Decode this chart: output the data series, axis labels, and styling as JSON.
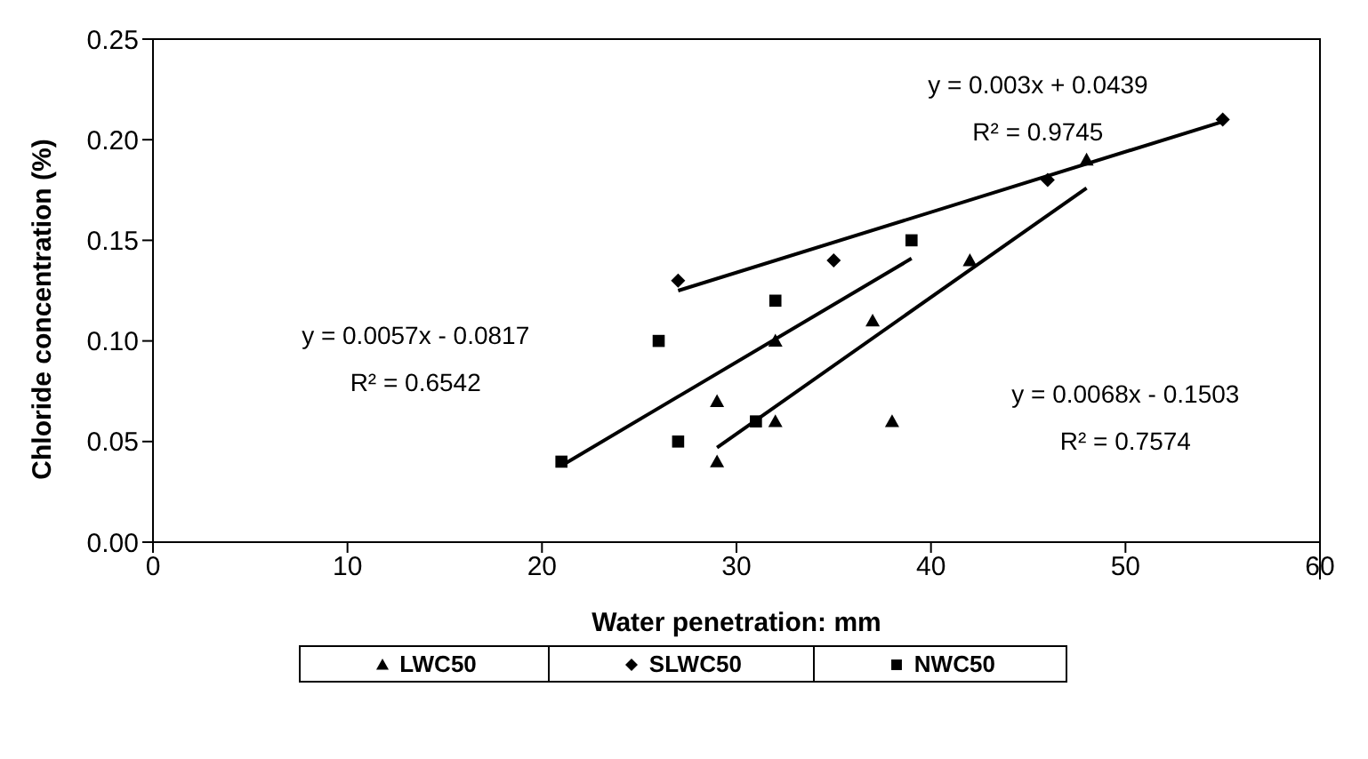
{
  "chart_data": {
    "type": "scatter",
    "xlabel": "Water penetration: mm",
    "ylabel": "Chloride concentration (%)",
    "xlim": [
      0,
      60
    ],
    "xticks": [
      0,
      10,
      20,
      30,
      40,
      50,
      60
    ],
    "ylim": [
      0,
      0.25
    ],
    "yticks": [
      {
        "value": 0,
        "label": "0.00"
      },
      {
        "value": 0.05,
        "label": "0.05"
      },
      {
        "value": 0.1,
        "label": "0.10"
      },
      {
        "value": 0.15,
        "label": "0.15"
      },
      {
        "value": 0.2,
        "label": "0.20"
      },
      {
        "value": 0.25,
        "label": "0.25"
      }
    ],
    "legend": "bottom",
    "series": [
      {
        "name": "LWC50",
        "color": "#000000",
        "marker": "triangle",
        "x": [
          29,
          29,
          32,
          32,
          37,
          38,
          42,
          48
        ],
        "values": [
          0.04,
          0.07,
          0.1,
          0.06,
          0.11,
          0.06,
          0.14,
          0.19
        ]
      },
      {
        "name": "SLWC50",
        "color": "#000000",
        "marker": "diamond",
        "x": [
          27,
          35,
          46,
          55
        ],
        "values": [
          0.13,
          0.14,
          0.18,
          0.21
        ]
      },
      {
        "name": "NWC50",
        "color": "#000000",
        "marker": "square",
        "x": [
          21,
          26,
          27,
          31,
          32,
          39
        ],
        "values": [
          0.04,
          0.1,
          0.05,
          0.06,
          0.12,
          0.15
        ]
      },
      {
        "type": "line",
        "color": "#000000",
        "marker": "none",
        "x": [
          29,
          48
        ],
        "values": [
          0.047,
          0.176
        ]
      },
      {
        "type": "line",
        "color": "#000000",
        "marker": "none",
        "x": [
          27,
          55
        ],
        "values": [
          0.125,
          0.209
        ]
      },
      {
        "type": "line",
        "color": "#000000",
        "marker": "none",
        "x": [
          21,
          39
        ],
        "values": [
          0.038,
          0.141
        ]
      }
    ],
    "annotations": [
      "y = 0.003x + 0.0439",
      "R² = 0.9745",
      "y = 0.0057x - 0.0817",
      "R² = 0.6542",
      "y = 0.0068x - 0.1503",
      "R² = 0.7574"
    ]
  }
}
